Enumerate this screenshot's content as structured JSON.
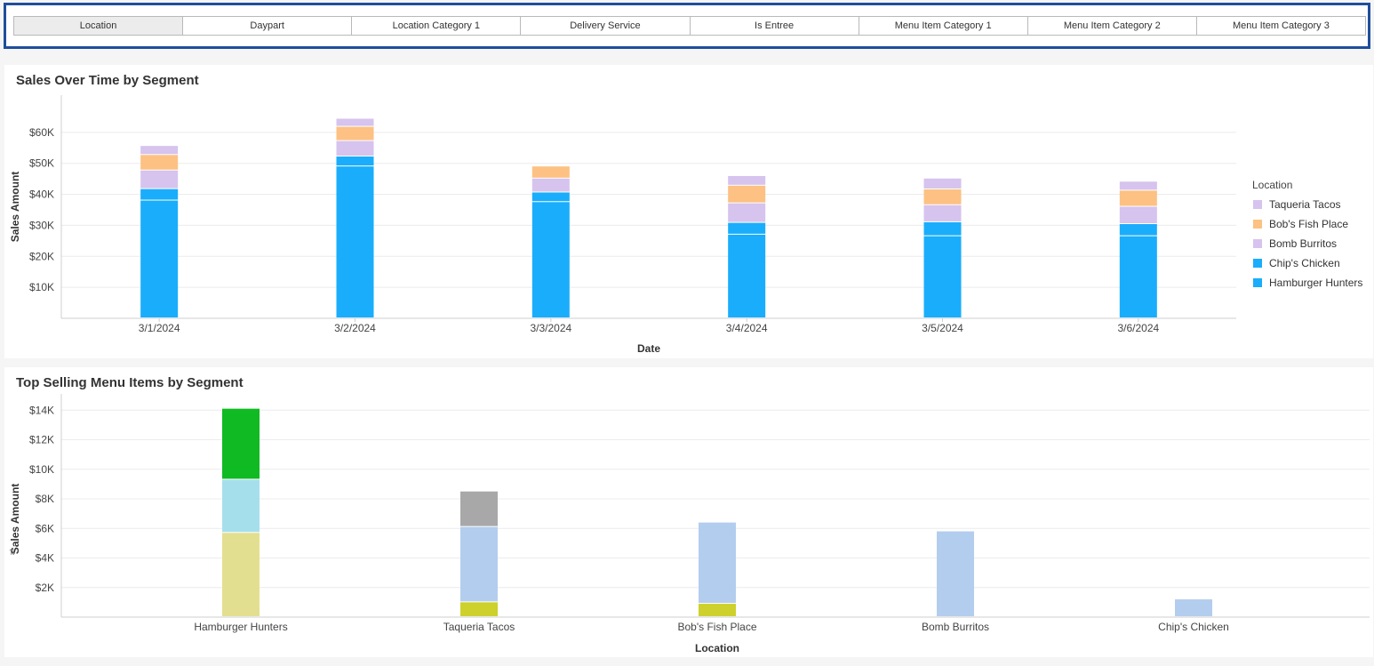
{
  "tabs": [
    {
      "label": "Location",
      "active": true
    },
    {
      "label": "Daypart"
    },
    {
      "label": "Location Category 1"
    },
    {
      "label": "Delivery Service"
    },
    {
      "label": "Is Entree"
    },
    {
      "label": "Menu Item Category 1"
    },
    {
      "label": "Menu Item Category 2"
    },
    {
      "label": "Menu Item Category 3"
    }
  ],
  "colors": {
    "taqueria": "#d6c3ee",
    "bobs": "#fcc183",
    "bomb": "#d6c3ee",
    "chips": "#1aadfc",
    "hamburger": "#1aadfc",
    "c_green": "#0fba23",
    "c_lightcyan": "#a6dfec",
    "c_khaki": "#e3df90",
    "c_gray": "#a8a8a8",
    "c_lightblue": "#b3cdee",
    "c_olive": "#ced12b"
  },
  "chart_data": [
    {
      "type": "bar",
      "stacked": true,
      "title": "Sales Over Time by Segment",
      "xlabel": "Date",
      "ylabel": "Sales Amount",
      "ylim": [
        0,
        72000
      ],
      "yticks": [
        10000,
        20000,
        30000,
        40000,
        50000,
        60000
      ],
      "ytick_labels": [
        "$10K",
        "$20K",
        "$30K",
        "$40K",
        "$50K",
        "$60K"
      ],
      "categories": [
        "3/1/2024",
        "3/2/2024",
        "3/3/2024",
        "3/4/2024",
        "3/5/2024",
        "3/6/2024"
      ],
      "legend_title": "Location",
      "legend": [
        {
          "name": "Taqueria Tacos",
          "color": "#d6c3ee"
        },
        {
          "name": "Bob's Fish Place",
          "color": "#fcc183"
        },
        {
          "name": "Bomb Burritos",
          "color": "#d6c3ee"
        },
        {
          "name": "Chip's Chicken",
          "color": "#1aadfc"
        },
        {
          "name": "Hamburger Hunters",
          "color": "#1aadfc"
        }
      ],
      "series": [
        {
          "name": "Hamburger Hunters",
          "color": "#1aadfc",
          "values": [
            38000,
            49000,
            37500,
            27000,
            26500,
            26500
          ]
        },
        {
          "name": "Chip's Chicken",
          "color": "#1aadfc",
          "values": [
            3700,
            3200,
            3100,
            3800,
            4500,
            3900
          ]
        },
        {
          "name": "Bomb Burritos",
          "color": "#d6c3ee",
          "values": [
            6000,
            5000,
            4500,
            6300,
            5500,
            5600
          ]
        },
        {
          "name": "Bob's Fish Place",
          "color": "#fcc183",
          "values": [
            5000,
            4600,
            3900,
            5700,
            5100,
            5200
          ]
        },
        {
          "name": "Taqueria Tacos",
          "color": "#d6c3ee",
          "values": [
            2900,
            2600,
            0,
            3100,
            3500,
            2900
          ]
        }
      ]
    },
    {
      "type": "bar",
      "stacked": true,
      "title": "Top Selling Menu Items by Segment",
      "xlabel": "Location",
      "ylabel": "Sales Amount",
      "ylim": [
        0,
        14500
      ],
      "yticks": [
        2000,
        4000,
        6000,
        8000,
        10000,
        12000,
        14000
      ],
      "ytick_labels": [
        "$2K",
        "$4K",
        "$6K",
        "$8K",
        "$10K",
        "$12K",
        "$14K"
      ],
      "categories": [
        "Hamburger Hunters",
        "Taqueria Tacos",
        "Bob's Fish Place",
        "Bomb Burritos",
        "Chip's Chicken"
      ],
      "stacks": [
        [
          {
            "value": 5700,
            "color": "#e3df90"
          },
          {
            "value": 3600,
            "color": "#a6dfec"
          },
          {
            "value": 4800,
            "color": "#0fba23"
          }
        ],
        [
          {
            "value": 1000,
            "color": "#ced12b"
          },
          {
            "value": 5100,
            "color": "#b3cdee"
          },
          {
            "value": 2400,
            "color": "#a8a8a8"
          }
        ],
        [
          {
            "value": 900,
            "color": "#ced12b"
          },
          {
            "value": 5500,
            "color": "#b3cdee"
          }
        ],
        [
          {
            "value": 5800,
            "color": "#b3cdee"
          }
        ],
        [
          {
            "value": 1200,
            "color": "#b3cdee"
          }
        ]
      ]
    }
  ]
}
